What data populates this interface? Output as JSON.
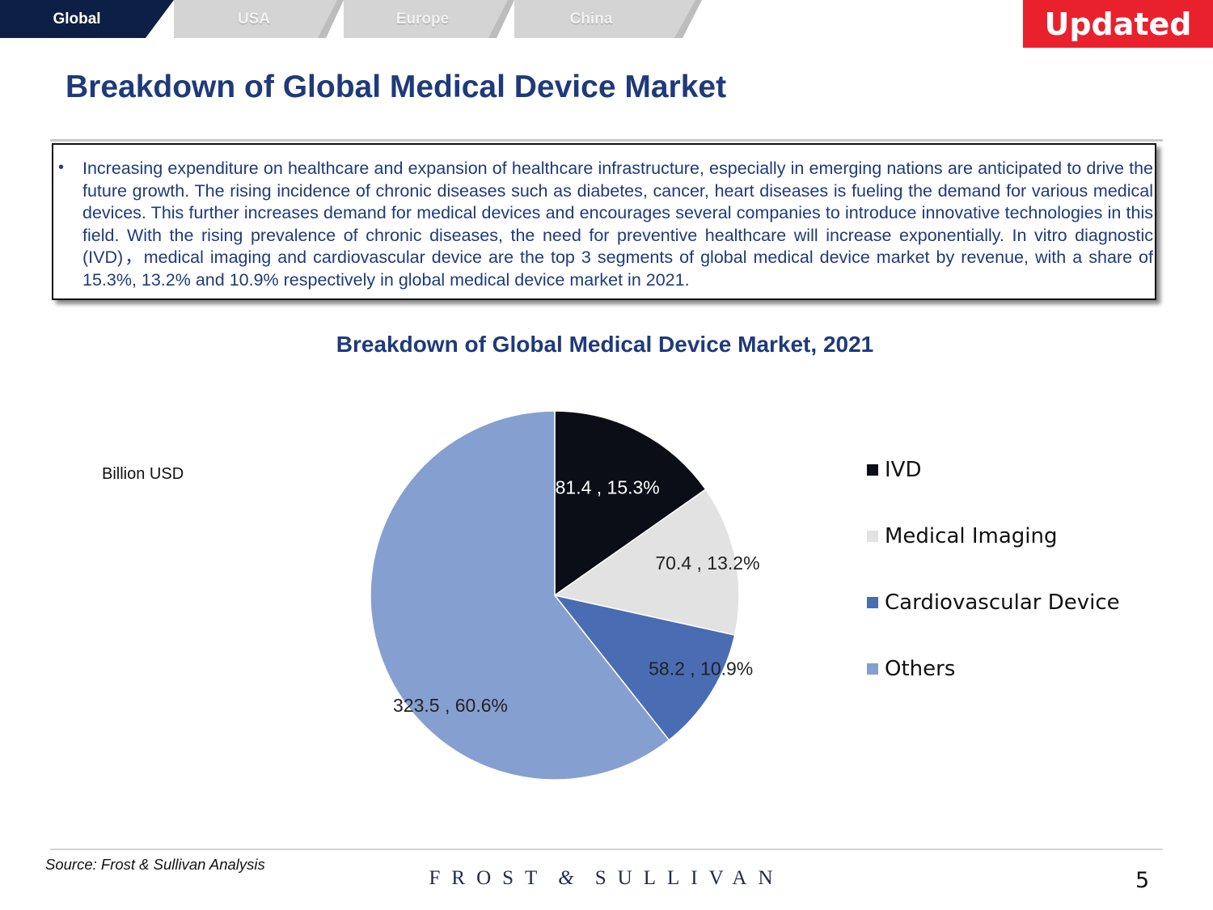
{
  "tabs": [
    {
      "label": "Global",
      "active": true
    },
    {
      "label": "USA",
      "active": false
    },
    {
      "label": "Europe",
      "active": false
    },
    {
      "label": "China",
      "active": false
    }
  ],
  "badge": {
    "label": "Updated"
  },
  "page": {
    "title": "Breakdown of Global Medical Device Market",
    "bullet": "•",
    "paragraph": "Increasing expenditure on healthcare and expansion of healthcare infrastructure, especially in emerging nations are anticipated to drive the future growth. The rising incidence of chronic diseases such as diabetes, cancer, heart diseases is fueling the demand for various medical devices. This further increases demand for medical devices and encourages several companies to introduce innovative technologies in this field. With the rising prevalence of chronic diseases, the need for preventive healthcare will increase exponentially. In vitro diagnostic (IVD)，medical imaging and cardiovascular device are the top 3 segments of global medical device market by revenue, with a share of 15.3%, 13.2% and 10.9% respectively in global medical device market in 2021."
  },
  "chart_data": {
    "type": "pie",
    "title": "Breakdown of Global Medical Device Market, 2021",
    "unit_label": "Billion USD",
    "slices": [
      {
        "name": "IVD",
        "value": 81.4,
        "percent": 15.3,
        "label": "81.4 , 15.3%",
        "color": "#0b0e17",
        "label_color": "#ffffff"
      },
      {
        "name": "Medical Imaging",
        "value": 70.4,
        "percent": 13.2,
        "label": "70.4 , 13.2%",
        "color": "#e2e2e2",
        "label_color": "#222222"
      },
      {
        "name": "Cardiovascular Device",
        "value": 58.2,
        "percent": 10.9,
        "label": "58.2 , 10.9%",
        "color": "#4a6cb2",
        "label_color": "#222222"
      },
      {
        "name": "Others",
        "value": 323.5,
        "percent": 60.6,
        "label": "323.5 , 60.6%",
        "color": "#869fd1",
        "label_color": "#222222"
      }
    ],
    "legend_position": "right"
  },
  "footer": {
    "source": "Source: Frost & Sullivan Analysis",
    "brand_left": "FROST",
    "brand_amp": "&",
    "brand_right": "SULLIVAN",
    "page_number": "5"
  },
  "colors": {
    "navy": "#1f3a7a",
    "tab_active": "#0e1f45",
    "tab_inactive": "#d4d4d4",
    "badge": "#e8212d"
  }
}
